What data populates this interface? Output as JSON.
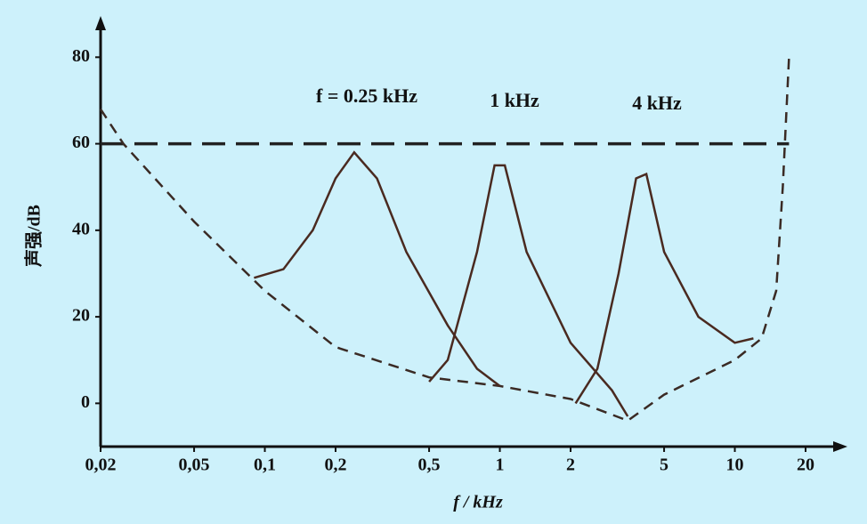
{
  "chart_data": {
    "type": "line",
    "xscale": "log",
    "xlabel": "f / kHz",
    "ylabel": "声强/dB",
    "xlim": [
      0.02,
      20
    ],
    "ylim": [
      -10,
      85
    ],
    "xticks": [
      {
        "value": 0.02,
        "label": "0,02"
      },
      {
        "value": 0.05,
        "label": "0,05"
      },
      {
        "value": 0.1,
        "label": "0,1"
      },
      {
        "value": 0.2,
        "label": "0,2"
      },
      {
        "value": 0.5,
        "label": "0,5"
      },
      1,
      2,
      5,
      10,
      20
    ],
    "yticks": [
      0,
      20,
      40,
      60,
      80
    ],
    "annotations": [
      "f = 0.25 kHz",
      "1 kHz",
      "4 kHz"
    ],
    "series": [
      {
        "color": "#222222",
        "style": "longdash",
        "x": [
          0.02,
          17
        ],
        "values": [
          60,
          60
        ]
      },
      {
        "color": "#3a2a24",
        "style": "dashed",
        "x": [
          0.02,
          0.025,
          0.05,
          0.1,
          0.2,
          0.5,
          1,
          2,
          3.5,
          5,
          10,
          13,
          15,
          16,
          17
        ],
        "values": [
          68,
          60,
          42,
          26,
          13,
          6,
          4,
          1,
          -4,
          2,
          10,
          15,
          26,
          50,
          80
        ]
      },
      {
        "color": "#4a2a20",
        "style": "solid",
        "x": [
          0.09,
          0.12,
          0.16,
          0.2,
          0.24,
          0.3,
          0.4,
          0.6,
          0.8,
          1.0
        ],
        "values": [
          29,
          31,
          40,
          52,
          58,
          52,
          35,
          18,
          8,
          4
        ]
      },
      {
        "color": "#4a2a20",
        "style": "solid",
        "x": [
          0.5,
          0.6,
          0.8,
          0.95,
          1.05,
          1.3,
          2,
          3,
          3.5
        ],
        "values": [
          5,
          10,
          35,
          55,
          55,
          35,
          14,
          3,
          -3
        ]
      },
      {
        "color": "#4a2a20",
        "style": "solid",
        "x": [
          2.1,
          2.6,
          3.2,
          3.8,
          4.2,
          5,
          7,
          10,
          12
        ],
        "values": [
          0,
          8,
          30,
          52,
          53,
          35,
          20,
          14,
          15
        ]
      }
    ]
  }
}
